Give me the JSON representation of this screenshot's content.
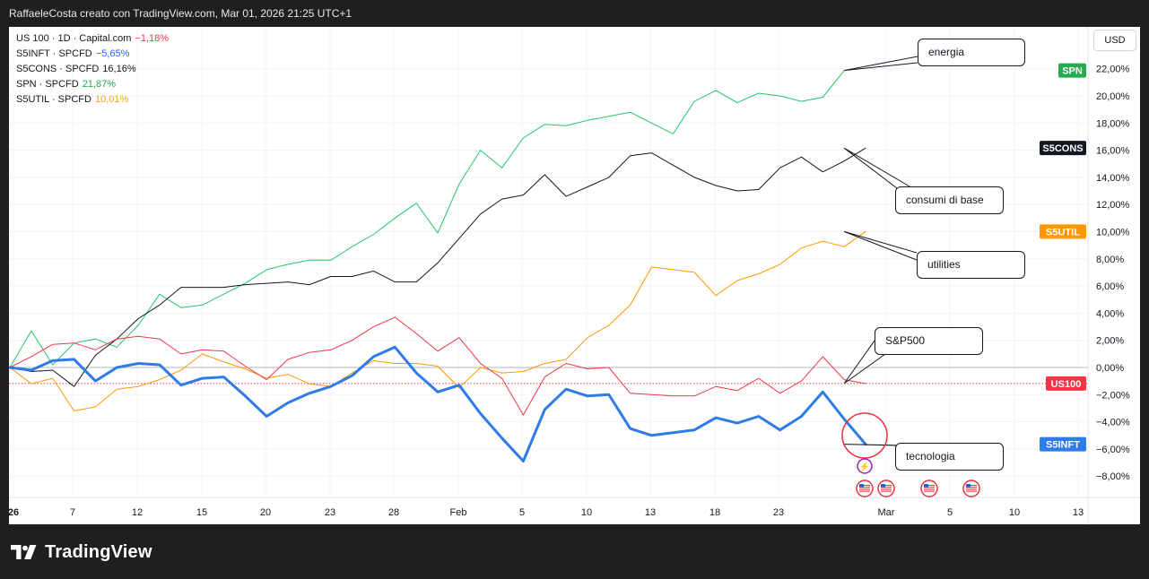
{
  "header": {
    "title": "RaffaeleCosta creato con TradingView.com, Mar 01, 2026 21:25 UTC+1"
  },
  "currency_button": {
    "label": "USD"
  },
  "brand": {
    "name": "TradingView"
  },
  "legend": [
    {
      "name": "US 100 · 1D · Capital.com",
      "value": "−1,18%",
      "color": "#f23645"
    },
    {
      "name": "S5INFT · SPCFD",
      "value": "−5,65%",
      "color": "#2962ff"
    },
    {
      "name": "S5CONS · SPCFD",
      "value": "16,16%",
      "color": "#131722"
    },
    {
      "name": "SPN · SPCFD",
      "value": "21,87%",
      "color": "#22ab94"
    },
    {
      "name": "S5UTIL · SPCFD",
      "value": "10,01%",
      "color": "#ff9800"
    }
  ],
  "annotations": {
    "energia": "energia",
    "consumi": "consumi di base",
    "utilities": "utilities",
    "sp500": "S&P500",
    "tecnologia": "tecnologia"
  },
  "chart_data": {
    "type": "line",
    "x_tick_labels": [
      "26",
      "7",
      "12",
      "15",
      "20",
      "23",
      "28",
      "Feb",
      "5",
      "10",
      "13",
      "18",
      "23",
      "Mar",
      "5",
      "10",
      "13"
    ],
    "y_tick_labels": [
      "22,00%",
      "20,00%",
      "18,00%",
      "16,00%",
      "14,00%",
      "12,00%",
      "10,00%",
      "8,00%",
      "6,00%",
      "4,00%",
      "2,00%",
      "0,00%",
      "−2,00%",
      "−4,00%",
      "−6,00%",
      "−8,00%"
    ],
    "ylim": [
      -9,
      24
    ],
    "y_unit": "%",
    "series": [
      {
        "name": "SPN",
        "color": "#26c46a",
        "width": 1,
        "values": [
          0,
          2.7,
          0.2,
          1.8,
          2.1,
          1.5,
          3.1,
          5.4,
          4.4,
          4.6,
          5.4,
          6.2,
          7.2,
          7.6,
          7.9,
          7.9,
          8.9,
          9.8,
          11.0,
          12.1,
          9.9,
          13.5,
          16.0,
          14.7,
          16.9,
          17.9,
          17.8,
          18.2,
          18.5,
          18.8,
          18.0,
          17.2,
          19.6,
          20.4,
          19.5,
          20.2,
          20.0,
          19.6,
          19.9,
          21.87
        ]
      },
      {
        "name": "S5CONS",
        "color": "#131722",
        "width": 1,
        "values": [
          0,
          -0.3,
          -0.2,
          -1.4,
          0.9,
          2.1,
          3.6,
          4.6,
          5.9,
          5.9,
          5.9,
          6.1,
          6.2,
          6.3,
          6.1,
          6.7,
          6.7,
          7.1,
          6.3,
          6.3,
          7.7,
          9.5,
          11.3,
          12.4,
          12.7,
          14.2,
          12.6,
          13.3,
          14.0,
          15.6,
          15.8,
          14.9,
          14.0,
          13.4,
          13.0,
          13.1,
          14.7,
          15.5,
          14.4,
          15.2,
          16.16
        ]
      },
      {
        "name": "S5UTIL",
        "color": "#ff9800",
        "width": 1,
        "values": [
          0,
          -1.2,
          -0.8,
          -3.2,
          -2.9,
          -1.6,
          -1.4,
          -0.9,
          -0.2,
          1.0,
          0.4,
          -0.1,
          -0.8,
          -0.5,
          -1.2,
          -1.4,
          -0.4,
          0.5,
          0.3,
          0.3,
          0.1,
          -1.5,
          0.0,
          -0.4,
          -0.3,
          0.3,
          0.6,
          2.2,
          3.1,
          4.6,
          7.4,
          7.2,
          7.0,
          5.3,
          6.4,
          6.9,
          7.6,
          8.8,
          9.3,
          8.9,
          10.01
        ]
      },
      {
        "name": "US100",
        "color": "#f23645",
        "width": 1,
        "values": [
          0,
          0.8,
          1.7,
          1.8,
          1.3,
          2.1,
          2.3,
          2.1,
          1.0,
          1.3,
          1.2,
          0.1,
          -0.9,
          0.6,
          1.1,
          1.3,
          2.0,
          3.0,
          3.7,
          2.5,
          1.2,
          2.2,
          0.3,
          -0.8,
          -3.5,
          -0.7,
          0.3,
          -0.1,
          0.0,
          -1.9,
          -2.0,
          -2.1,
          -2.1,
          -1.4,
          -1.7,
          -0.8,
          -1.9,
          -1.0,
          0.8,
          -0.9,
          -1.18
        ]
      },
      {
        "name": "S5INFT",
        "color": "#2f7be8",
        "width": 3,
        "values": [
          0,
          -0.2,
          0.5,
          0.6,
          -1.0,
          0.0,
          0.3,
          0.2,
          -1.3,
          -0.8,
          -0.7,
          -2.1,
          -3.6,
          -2.6,
          -1.9,
          -1.4,
          -0.6,
          0.8,
          1.5,
          -0.4,
          -1.8,
          -1.3,
          -3.4,
          -5.2,
          -6.9,
          -3.1,
          -1.6,
          -2.1,
          -2.0,
          -4.5,
          -5.0,
          -4.8,
          -4.6,
          -3.7,
          -4.1,
          -3.6,
          -4.6,
          -3.6,
          -1.8,
          -3.8,
          -5.65
        ]
      }
    ],
    "price_tags": [
      {
        "label": "SPN",
        "value": 21.87,
        "color": "#22ab4f"
      },
      {
        "label": "S5CONS",
        "value": 16.16,
        "color": "#131722"
      },
      {
        "label": "S5UTIL",
        "value": 10.01,
        "color": "#ff9800"
      },
      {
        "label": "US100",
        "value": -1.18,
        "color": "#f23645"
      },
      {
        "label": "S5INFT",
        "value": -5.65,
        "color": "#2f7be8"
      }
    ]
  }
}
